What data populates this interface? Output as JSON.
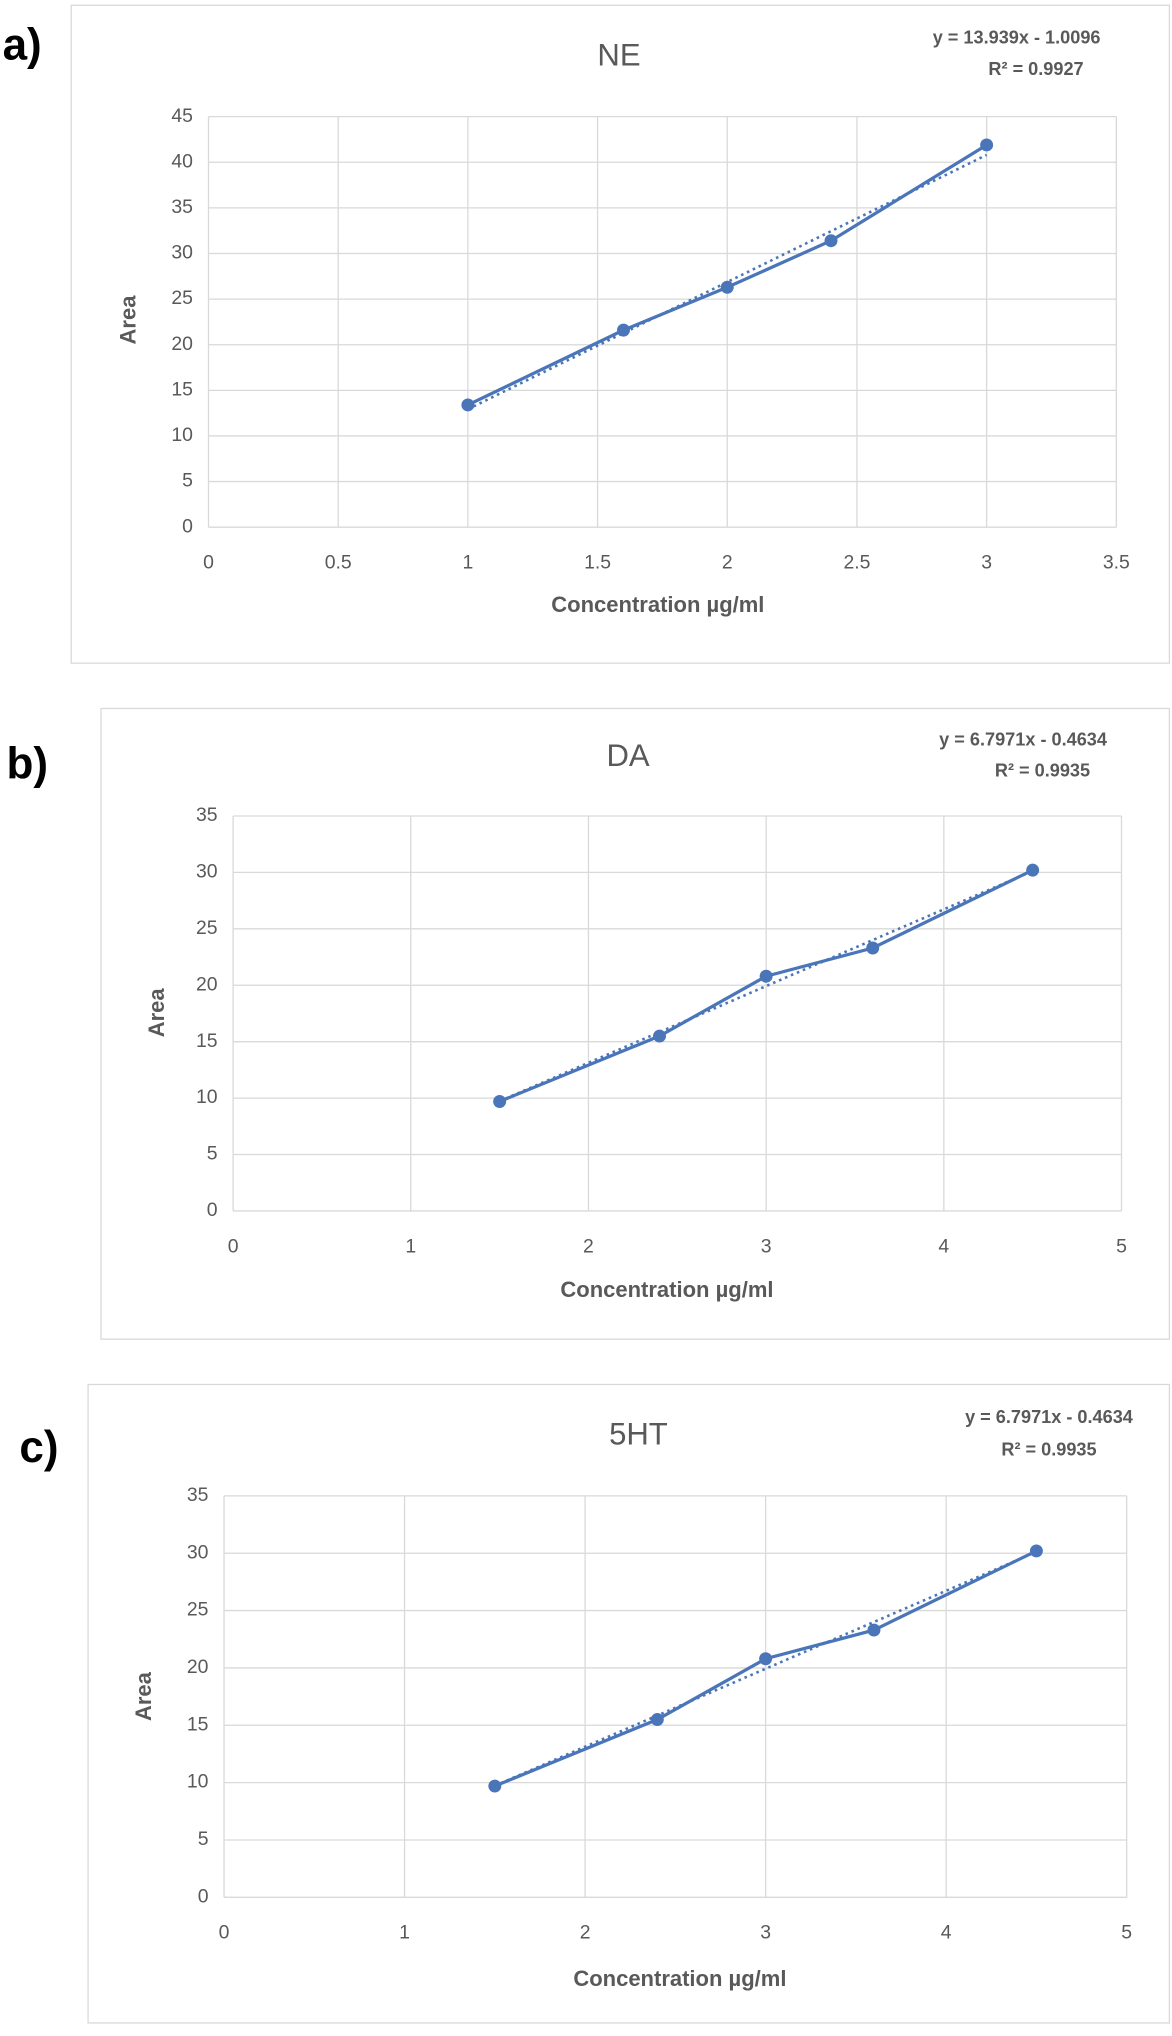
{
  "chart_data": [
    {
      "type": "line",
      "panel": "a)",
      "title": "NE",
      "equation": "y = 13.939x  - 1.0096",
      "r_squared": "R² = 0.9927",
      "x_label": "Concentration µg/ml",
      "y_label": "Area",
      "x": [
        1,
        1.6,
        2,
        2.4,
        3
      ],
      "values": [
        13.4,
        21.6,
        26.3,
        31.4,
        41.9
      ],
      "trendline": {
        "slope": 13.939,
        "intercept": -1.0096
      },
      "xlim": [
        0,
        3.5
      ],
      "xticks": [
        0,
        0.5,
        1,
        1.5,
        2,
        2.5,
        3,
        3.5
      ],
      "ylim": [
        0,
        45
      ],
      "yticks": [
        0,
        5,
        10,
        15,
        20,
        25,
        30,
        35,
        40,
        45
      ],
      "grid": true,
      "color": "#4a76b9"
    },
    {
      "type": "line",
      "panel": "b)",
      "title": "DA",
      "equation": "y = 6.7971x  - 0.4634",
      "r_squared": "R² = 0.9935",
      "x_label": "Concentration µg/ml",
      "y_label": "Area",
      "x": [
        1.5,
        2.4,
        3,
        3.6,
        4.5
      ],
      "values": [
        9.7,
        15.5,
        20.8,
        23.3,
        30.2
      ],
      "trendline": {
        "slope": 6.7971,
        "intercept": -0.4634
      },
      "xlim": [
        0,
        5
      ],
      "xticks": [
        0,
        1,
        2,
        3,
        4,
        5
      ],
      "ylim": [
        0,
        35
      ],
      "yticks": [
        0,
        5,
        10,
        15,
        20,
        25,
        30,
        35
      ],
      "grid": true,
      "color": "#4a76b9"
    },
    {
      "type": "line",
      "panel": "c)",
      "title": "5HT",
      "equation": "y = 6.7971x  - 0.4634",
      "r_squared": "R² = 0.9935",
      "x_label": "Concentration µg/ml",
      "y_label": "Area",
      "x": [
        1.5,
        2.4,
        3,
        3.6,
        4.5
      ],
      "values": [
        9.7,
        15.5,
        20.8,
        23.3,
        30.2
      ],
      "trendline": {
        "slope": 6.7971,
        "intercept": -0.4634
      },
      "xlim": [
        0,
        5
      ],
      "xticks": [
        0,
        1,
        2,
        3,
        4,
        5
      ],
      "ylim": [
        0,
        35
      ],
      "yticks": [
        0,
        5,
        10,
        15,
        20,
        25,
        30,
        35
      ],
      "grid": true,
      "color": "#4a76b9"
    }
  ]
}
